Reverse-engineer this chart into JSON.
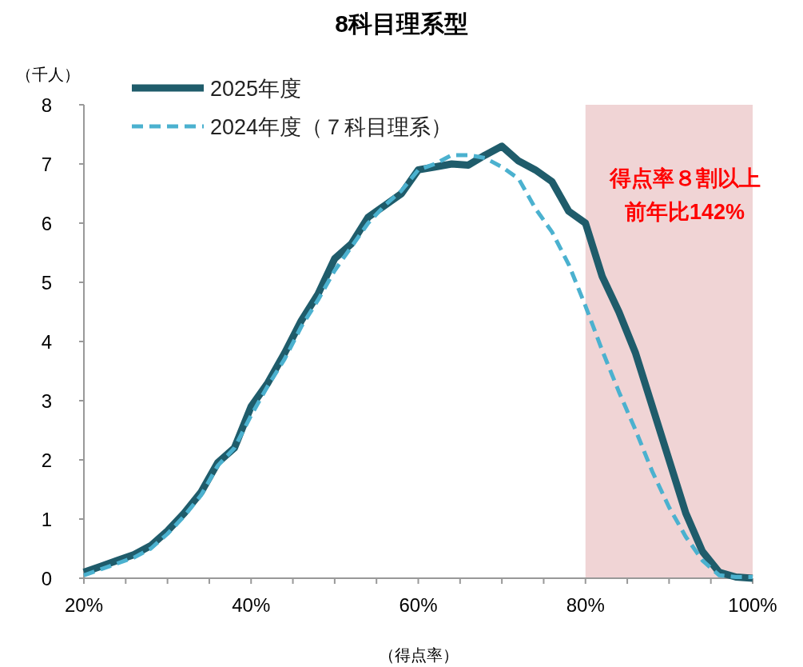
{
  "chart_data": {
    "type": "line",
    "title": "8科目理系型",
    "xlabel": "（得点率）",
    "ylabel": "（千人）",
    "x": [
      20,
      22,
      24,
      26,
      28,
      30,
      32,
      34,
      36,
      38,
      40,
      42,
      44,
      46,
      48,
      50,
      52,
      54,
      56,
      58,
      60,
      62,
      64,
      66,
      68,
      70,
      72,
      74,
      76,
      78,
      80,
      82,
      84,
      86,
      88,
      90,
      92,
      94,
      96,
      98,
      100
    ],
    "series": [
      {
        "name": "2025年度",
        "color": "#1f5c6b",
        "line_style": "solid",
        "values": [
          0.1,
          0.2,
          0.3,
          0.4,
          0.55,
          0.8,
          1.1,
          1.45,
          1.95,
          2.2,
          2.9,
          3.3,
          3.8,
          4.35,
          4.8,
          5.4,
          5.65,
          6.1,
          6.3,
          6.5,
          6.9,
          6.95,
          7.0,
          6.98,
          7.15,
          7.3,
          7.05,
          6.9,
          6.7,
          6.2,
          6.0,
          5.1,
          4.5,
          3.8,
          2.9,
          2.0,
          1.1,
          0.45,
          0.1,
          0.02,
          0.0
        ]
      },
      {
        "name": "2024年度（７科目理系）",
        "color": "#4bb1cf",
        "line_style": "dashed",
        "values": [
          0.05,
          0.15,
          0.25,
          0.35,
          0.5,
          0.75,
          1.05,
          1.4,
          1.9,
          2.2,
          2.75,
          3.25,
          3.7,
          4.25,
          4.7,
          5.2,
          5.6,
          6.0,
          6.3,
          6.55,
          6.9,
          7.0,
          7.15,
          7.15,
          7.1,
          6.95,
          6.75,
          6.25,
          5.85,
          5.3,
          4.6,
          3.85,
          3.15,
          2.5,
          1.8,
          1.2,
          0.7,
          0.3,
          0.05,
          0.02,
          0.02
        ]
      }
    ],
    "xlim": [
      20,
      100
    ],
    "xticks": [
      {
        "value": 20,
        "label": "20%"
      },
      {
        "value": 25,
        "label": null
      },
      {
        "value": 30,
        "label": null
      },
      {
        "value": 35,
        "label": null
      },
      {
        "value": 40,
        "label": "40%"
      },
      {
        "value": 45,
        "label": null
      },
      {
        "value": 50,
        "label": null
      },
      {
        "value": 55,
        "label": null
      },
      {
        "value": 60,
        "label": "60%"
      },
      {
        "value": 65,
        "label": null
      },
      {
        "value": 70,
        "label": null
      },
      {
        "value": 75,
        "label": null
      },
      {
        "value": 80,
        "label": "80%"
      },
      {
        "value": 85,
        "label": null
      },
      {
        "value": 90,
        "label": null
      },
      {
        "value": 95,
        "label": null
      },
      {
        "value": 100,
        "label": "100%"
      }
    ],
    "ylim": [
      0,
      8
    ],
    "yticks": [
      0,
      1,
      2,
      3,
      4,
      5,
      6,
      7,
      8
    ],
    "bands": [
      {
        "axis": "x",
        "from": 80,
        "to": 100,
        "color": "#f0d4d5"
      }
    ],
    "annotations": [
      "得点率８割以上",
      "前年比142%"
    ],
    "grid": false,
    "legend": "top left"
  }
}
